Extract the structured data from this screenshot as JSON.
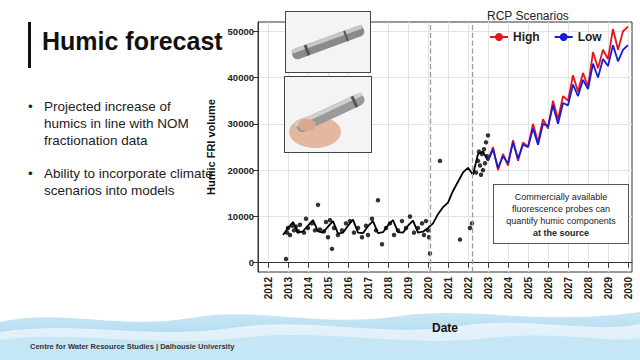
{
  "slide": {
    "title": "Humic forecast",
    "bullets": [
      "Projected increase of humics in line with NOM fractionation data",
      "Ability to incorporate climate scenarios into models"
    ],
    "footer": "Centre for Water Resource Studies | Dalhousie University"
  },
  "chart_data": {
    "type": "line",
    "x_label": "Date",
    "y_label": "Humic FRI volume",
    "legend_title": "RCP Scenarios",
    "legend": "top-right",
    "grid": true,
    "annotation": {
      "text": "Commercially available fluorescence probes can quantify humic components",
      "bold_text": "at the source"
    },
    "vlines": [
      2020.1,
      2022.2
    ],
    "xlim": [
      2011.5,
      2030.2
    ],
    "xticks": [
      2012,
      2013,
      2014,
      2015,
      2016,
      2017,
      2018,
      2019,
      2020,
      2021,
      2022,
      2023,
      2024,
      2025,
      2026,
      2027,
      2028,
      2029,
      2030
    ],
    "ylim": [
      -2000,
      52000
    ],
    "yticks": [
      0,
      10000,
      20000,
      30000,
      40000,
      50000
    ],
    "series": [
      {
        "type": "scatter",
        "color": "#000000",
        "marker": "circle",
        "x": [
          2012.9,
          2012.95,
          2013.0,
          2013.1,
          2013.2,
          2013.3,
          2013.4,
          2013.5,
          2013.6,
          2013.8,
          2013.9,
          2014.0,
          2014.2,
          2014.35,
          2014.5,
          2014.6,
          2014.8,
          2014.9,
          2015.0,
          2015.1,
          2015.2,
          2015.3,
          2015.5,
          2015.7,
          2015.9,
          2016.1,
          2016.3,
          2016.5,
          2016.7,
          2016.9,
          2017.0,
          2017.2,
          2017.4,
          2017.5,
          2017.7,
          2017.9,
          2018.1,
          2018.3,
          2018.5,
          2018.7,
          2018.9,
          2019.1,
          2019.3,
          2019.5,
          2019.7,
          2019.8,
          2019.9,
          2020.0,
          2020.05,
          2020.1,
          2020.6,
          2021.6,
          2022.1,
          2022.2,
          2022.4,
          2022.5,
          2022.55,
          2022.6,
          2022.65,
          2022.7,
          2022.75,
          2022.8,
          2022.85,
          2022.9,
          2022.95,
          2023.0
        ],
        "values": [
          800,
          6500,
          7500,
          6000,
          8000,
          7000,
          7800,
          6800,
          8200,
          6500,
          9500,
          7500,
          8500,
          7000,
          12500,
          7200,
          6800,
          8800,
          5500,
          9200,
          3000,
          7500,
          6000,
          7000,
          8500,
          9000,
          6500,
          7500,
          5500,
          8000,
          6000,
          9500,
          7000,
          13500,
          4000,
          7500,
          8500,
          6000,
          7000,
          9000,
          7500,
          10000,
          6500,
          7500,
          8500,
          6000,
          9000,
          7000,
          5500,
          2000,
          22000,
          5000,
          7500,
          8500,
          19500,
          22000,
          24000,
          21000,
          19000,
          23500,
          20000,
          24500,
          21500,
          26000,
          23000,
          27500
        ]
      },
      {
        "type": "line",
        "color": "#000000",
        "line_style": "solid",
        "x": [
          2012.75,
          2013.0,
          2013.25,
          2013.5,
          2013.75,
          2014.0,
          2014.25,
          2014.5,
          2014.75,
          2015.0,
          2015.25,
          2015.5,
          2015.75,
          2016.0,
          2016.25,
          2016.5,
          2016.75,
          2017.0,
          2017.25,
          2017.5,
          2017.75,
          2018.0,
          2018.25,
          2018.5,
          2018.75,
          2019.0,
          2019.25,
          2019.5,
          2019.75,
          2020.0,
          2020.25,
          2020.5,
          2020.75,
          2021.0,
          2021.25,
          2021.5,
          2021.75,
          2022.0,
          2022.25,
          2022.5,
          2022.75,
          2023.0
        ],
        "values": [
          6000,
          7500,
          8800,
          6500,
          6800,
          8000,
          9200,
          6800,
          6500,
          7800,
          9000,
          6300,
          6500,
          8000,
          9300,
          6500,
          6400,
          7900,
          9000,
          6400,
          6600,
          8100,
          9200,
          6600,
          6500,
          8000,
          9100,
          6500,
          6700,
          7500,
          8500,
          10500,
          12000,
          13000,
          15500,
          17500,
          19500,
          20500,
          19000,
          23500,
          24000,
          22000
        ]
      },
      {
        "name": "High",
        "type": "line",
        "color": "#e8141c",
        "line_style": "solid",
        "x": [
          2023.0,
          2023.25,
          2023.5,
          2023.75,
          2024.0,
          2024.25,
          2024.5,
          2024.75,
          2025.0,
          2025.25,
          2025.5,
          2025.75,
          2026.0,
          2026.25,
          2026.5,
          2026.75,
          2027.0,
          2027.25,
          2027.5,
          2027.75,
          2028.0,
          2028.25,
          2028.5,
          2028.75,
          2029.0,
          2029.25,
          2029.5,
          2029.75,
          2030.0
        ],
        "values": [
          22000,
          25000,
          20000,
          23500,
          21000,
          26500,
          22000,
          26000,
          25000,
          30000,
          26000,
          31000,
          29000,
          35000,
          31000,
          36000,
          35000,
          40500,
          37000,
          41000,
          38000,
          45500,
          42000,
          46000,
          44000,
          50500,
          46000,
          50000,
          51000
        ]
      },
      {
        "name": "Low",
        "type": "line",
        "color": "#1a1adb",
        "line_style": "solid",
        "x": [
          2023.0,
          2023.25,
          2023.5,
          2023.75,
          2024.0,
          2024.25,
          2024.5,
          2024.75,
          2025.0,
          2025.25,
          2025.5,
          2025.75,
          2026.0,
          2026.25,
          2026.5,
          2026.75,
          2027.0,
          2027.25,
          2027.5,
          2027.75,
          2028.0,
          2028.25,
          2028.5,
          2028.75,
          2029.0,
          2029.25,
          2029.5,
          2029.75,
          2030.0
        ],
        "values": [
          22000,
          24500,
          20500,
          23000,
          21500,
          26000,
          22500,
          25500,
          25000,
          29000,
          25500,
          30000,
          29500,
          34000,
          30000,
          34500,
          34000,
          38500,
          36000,
          39500,
          37500,
          43000,
          40000,
          44000,
          42500,
          47000,
          43500,
          46000,
          47000
        ]
      }
    ]
  }
}
